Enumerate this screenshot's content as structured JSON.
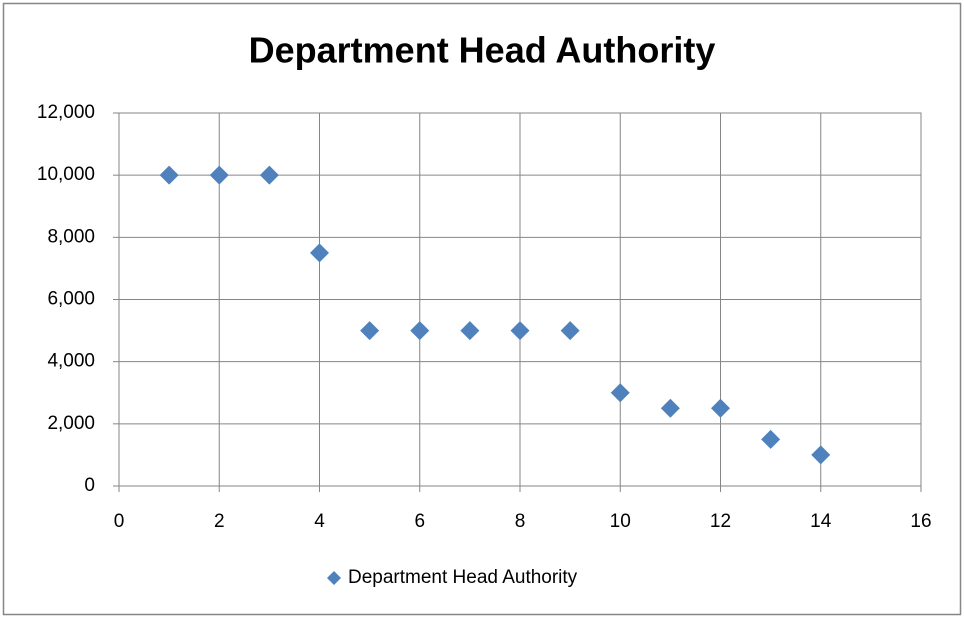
{
  "chart_data": {
    "type": "scatter",
    "title": "Department Head Authority",
    "series": [
      {
        "name": "Department Head Authority",
        "color": "#4f81bd",
        "x": [
          1,
          2,
          3,
          4,
          5,
          6,
          7,
          8,
          9,
          10,
          11,
          12,
          13,
          14
        ],
        "values": [
          10000,
          10000,
          10000,
          7500,
          5000,
          5000,
          5000,
          5000,
          5000,
          3000,
          2500,
          2500,
          1500,
          1000
        ]
      }
    ],
    "xlim": [
      0,
      16
    ],
    "xticks": [
      0,
      2,
      4,
      6,
      8,
      10,
      12,
      14,
      16
    ],
    "ylim": [
      0,
      12000
    ],
    "yticks": [
      0,
      {
        "value": 2000,
        "label": "2,000"
      },
      {
        "value": 4000,
        "label": "4,000"
      },
      {
        "value": 6000,
        "label": "6,000"
      },
      {
        "value": 8000,
        "label": "8,000"
      },
      {
        "value": 10000,
        "label": "10,000"
      },
      {
        "value": 12000,
        "label": "12,000"
      }
    ],
    "grid": true,
    "legend": "bottom"
  }
}
